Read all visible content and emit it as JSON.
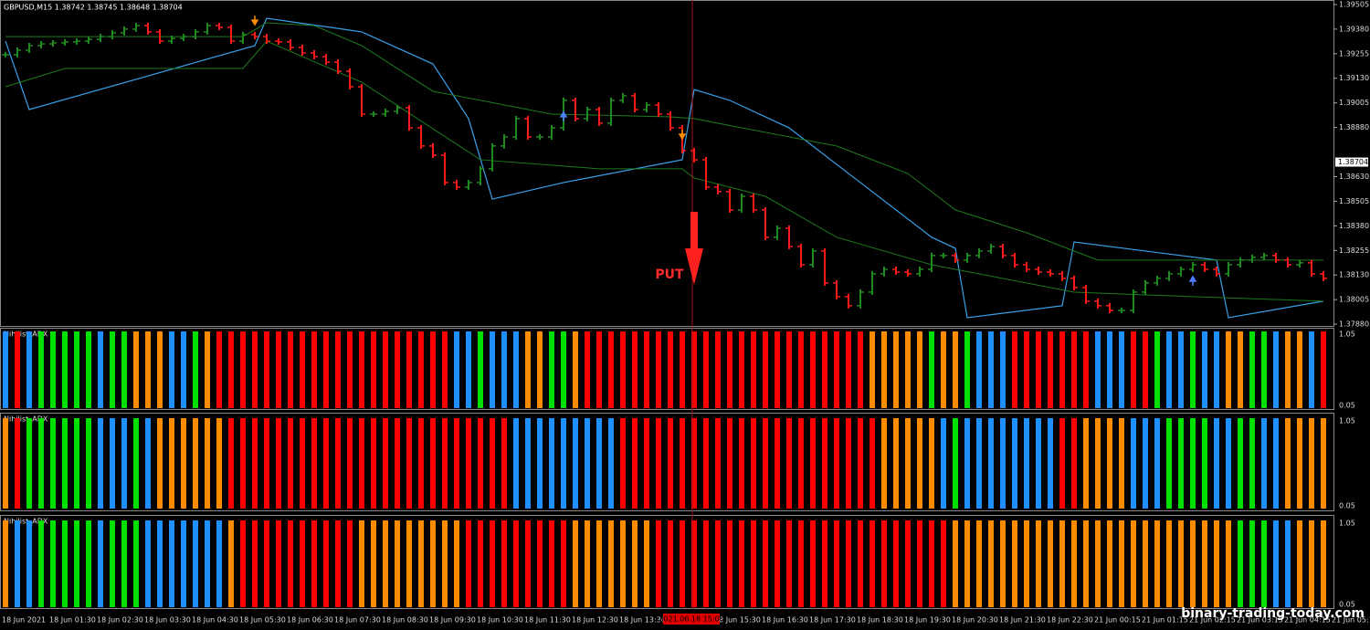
{
  "chart_data": {
    "type": "candlestick",
    "title": "GBPUSD,M15  1.38742 1.38745 1.38648 1.38704",
    "ylim": [
      1.37871,
      1.39528
    ],
    "yticks": [
      {
        "value": 1.39505,
        "label": "1.39505"
      },
      {
        "value": 1.3938,
        "label": "1.39380"
      },
      {
        "value": 1.39255,
        "label": "1.39255"
      },
      {
        "value": 1.3913,
        "label": "1.39130"
      },
      {
        "value": 1.39005,
        "label": "1.39005"
      },
      {
        "value": 1.3888,
        "label": "1.38880"
      },
      {
        "value": 1.3863,
        "label": "1.38630"
      },
      {
        "value": 1.38505,
        "label": "1.38505"
      },
      {
        "value": 1.3838,
        "label": "1.38380"
      },
      {
        "value": 1.38255,
        "label": "1.38255"
      },
      {
        "value": 1.3813,
        "label": "1.38130"
      },
      {
        "value": 1.38005,
        "label": "1.38005"
      },
      {
        "value": 1.3788,
        "label": "1.37880"
      }
    ],
    "last_price": 1.38704,
    "up_color": "#1f8a1f",
    "down_color": "#ff1a1a",
    "closes": [
      1.3925,
      1.39273,
      1.39296,
      1.39305,
      1.3931,
      1.39315,
      1.39319,
      1.39328,
      1.39342,
      1.39361,
      1.3938,
      1.39398,
      1.39366,
      1.39319,
      1.39333,
      1.39342,
      1.39366,
      1.39398,
      1.39389,
      1.39319,
      1.39352,
      1.39342,
      1.39319,
      1.39315,
      1.39287,
      1.39259,
      1.3924,
      1.39212,
      1.39166,
      1.39087,
      1.38948,
      1.38948,
      1.38962,
      1.3898,
      1.38878,
      1.38786,
      1.38739,
      1.386,
      1.38577,
      1.386,
      1.3867,
      1.38786,
      1.38832,
      1.38925,
      1.38832,
      1.38832,
      1.38878,
      1.39018,
      1.38925,
      1.38971,
      1.38902,
      1.39018,
      1.39041,
      1.38971,
      1.38994,
      1.38948,
      1.38878,
      1.38762,
      1.38716,
      1.38577,
      1.38554,
      1.38461,
      1.3853,
      1.38461,
      1.38322,
      1.38368,
      1.38275,
      1.38182,
      1.38252,
      1.3809,
      1.3802,
      1.37974,
      1.38043,
      1.38136,
      1.38159,
      1.38145,
      1.38136,
      1.38159,
      1.38229,
      1.38229,
      1.38206,
      1.38229,
      1.38252,
      1.38275,
      1.38229,
      1.38182,
      1.38159,
      1.38145,
      1.38136,
      1.38113,
      1.38066,
      1.37997,
      1.37974,
      1.3795,
      1.3795,
      1.38043,
      1.3809,
      1.38113,
      1.38136,
      1.38159,
      1.38182,
      1.38159,
      1.38136,
      1.38182,
      1.38206,
      1.3822,
      1.38229,
      1.38206,
      1.38182,
      1.38192,
      1.38136,
      1.38113
    ],
    "lines": [
      {
        "color": "#3aa0e8",
        "x": [
          0,
          2,
          21,
          22,
          30,
          36,
          39,
          41,
          47,
          57,
          58,
          61,
          66,
          72,
          78,
          80,
          81,
          89,
          90,
          102,
          103,
          111
        ],
        "values": [
          1.39319,
          1.38971,
          1.39296,
          1.39435,
          1.39366,
          1.39203,
          1.38925,
          1.38516,
          1.386,
          1.38716,
          1.39073,
          1.39018,
          1.38878,
          1.386,
          1.38322,
          1.38266,
          1.37913,
          1.37974,
          1.38298,
          1.38206,
          1.37913,
          1.37997
        ]
      },
      {
        "color": "#1e7a1e",
        "x": [
          0,
          20,
          22,
          26,
          30,
          36,
          40,
          46,
          56,
          58,
          62,
          70,
          76,
          80,
          86,
          92,
          100,
          111
        ],
        "values": [
          1.39342,
          1.39342,
          1.39412,
          1.39398,
          1.39296,
          1.39064,
          1.39018,
          1.38948,
          1.38934,
          1.38925,
          1.38878,
          1.38786,
          1.38646,
          1.38461,
          1.38345,
          1.38206,
          1.38206,
          1.38206
        ]
      },
      {
        "color": "#1e7a1e",
        "x": [
          0,
          5,
          20,
          22,
          30,
          40,
          50,
          57,
          58,
          64,
          70,
          78,
          90,
          100,
          111
        ],
        "values": [
          1.39087,
          1.3918,
          1.3918,
          1.39319,
          1.3911,
          1.38716,
          1.3867,
          1.3867,
          1.38623,
          1.3853,
          1.38322,
          1.38182,
          1.38043,
          1.3802,
          1.37997
        ]
      }
    ],
    "arrows": [
      {
        "candle": 21,
        "dir": "down",
        "color": "#ff8c00"
      },
      {
        "candle": 57,
        "dir": "down",
        "color": "#ff8c00"
      },
      {
        "candle": 47,
        "dir": "up",
        "color": "#4f7fff"
      },
      {
        "candle": 100,
        "dir": "up",
        "color": "#4f7fff"
      }
    ],
    "annotation": "PUT",
    "crosshair_time": "2021.06.18 15:00",
    "times": [
      "18 Jun 2021",
      "18 Jun 01:30",
      "18 Jun 02:30",
      "18 Jun 03:30",
      "18 Jun 04:30",
      "18 Jun 05:30",
      "18 Jun 06:30",
      "18 Jun 07:30",
      "18 Jun 08:30",
      "18 Jun 09:30",
      "18 Jun 10:30",
      "18 Jun 11:30",
      "18 Jun 12:30",
      "18 Jun 13:30",
      "18 Jun 15:30",
      "18 Jun 16:30",
      "18 Jun 17:30",
      "18 Jun 18:30",
      "18 Jun 19:30",
      "18 Jun 20:30",
      "18 Jun 21:30",
      "18 Jun 22:30",
      "21 Jun 00:15",
      "21 Jun 01:15",
      "21 Jun 02:15",
      "21 Jun 03:15",
      "21 Jun 04:15",
      "21 Jun 05:15"
    ],
    "palette": {
      "r": "#ff0000",
      "g": "#00e000",
      "b": "#1e90ff",
      "o": "#ff8c00"
    },
    "panels": [
      {
        "name": "Nihilist_ADX",
        "ylim": [
          0.05,
          1.05
        ],
        "colors": [
          "b",
          "r",
          "b",
          "g",
          "g",
          "g",
          "g",
          "g",
          "b",
          "g",
          "g",
          "o",
          "o",
          "o",
          "b",
          "b",
          "g",
          "o",
          "r",
          "r",
          "r",
          "r",
          "r",
          "r",
          "r",
          "r",
          "r",
          "r",
          "r",
          "r",
          "r",
          "r",
          "r",
          "r",
          "r",
          "r",
          "r",
          "r",
          "b",
          "b",
          "g",
          "b",
          "b",
          "b",
          "o",
          "o",
          "g",
          "g",
          "o",
          "r",
          "r",
          "r",
          "r",
          "r",
          "r",
          "r",
          "r",
          "r",
          "r",
          "r",
          "r",
          "r",
          "r",
          "r",
          "r",
          "r",
          "r",
          "r",
          "r",
          "r",
          "r",
          "r",
          "r",
          "o",
          "o",
          "o",
          "o",
          "o",
          "g",
          "o",
          "o",
          "g",
          "b",
          "b",
          "b",
          "r",
          "r",
          "r",
          "r",
          "r",
          "r",
          "r",
          "b",
          "b",
          "b",
          "r",
          "r",
          "g",
          "b",
          "b",
          "g",
          "b",
          "b",
          "o",
          "o",
          "g",
          "g",
          "b",
          "o",
          "o",
          "b",
          "r"
        ]
      },
      {
        "name": "Nihilist_ADX",
        "ylim": [
          0.05,
          1.05
        ],
        "colors": [
          "o",
          "r",
          "g",
          "g",
          "g",
          "g",
          "g",
          "g",
          "b",
          "b",
          "b",
          "g",
          "b",
          "o",
          "o",
          "o",
          "o",
          "o",
          "o",
          "r",
          "r",
          "r",
          "r",
          "r",
          "r",
          "r",
          "r",
          "r",
          "r",
          "r",
          "r",
          "r",
          "r",
          "r",
          "r",
          "r",
          "r",
          "r",
          "r",
          "r",
          "r",
          "r",
          "r",
          "b",
          "b",
          "b",
          "b",
          "b",
          "b",
          "b",
          "b",
          "b",
          "r",
          "r",
          "r",
          "r",
          "r",
          "r",
          "r",
          "r",
          "r",
          "r",
          "r",
          "r",
          "r",
          "r",
          "r",
          "r",
          "r",
          "r",
          "r",
          "r",
          "r",
          "r",
          "o",
          "o",
          "o",
          "o",
          "o",
          "b",
          "g",
          "b",
          "b",
          "b",
          "b",
          "b",
          "b",
          "b",
          "b",
          "r",
          "r",
          "o",
          "o",
          "o",
          "o",
          "b",
          "b",
          "b",
          "g",
          "g",
          "g",
          "g",
          "b",
          "b",
          "g",
          "g",
          "b",
          "b",
          "o",
          "o",
          "o",
          "o"
        ]
      },
      {
        "name": "Nihilist_ADX",
        "ylim": [
          0.05,
          1.05
        ],
        "colors": [
          "o",
          "b",
          "b",
          "g",
          "g",
          "g",
          "g",
          "g",
          "b",
          "g",
          "g",
          "g",
          "b",
          "b",
          "b",
          "b",
          "b",
          "b",
          "b",
          "o",
          "r",
          "r",
          "r",
          "r",
          "r",
          "r",
          "r",
          "r",
          "r",
          "r",
          "o",
          "o",
          "o",
          "o",
          "o",
          "o",
          "o",
          "o",
          "o",
          "r",
          "r",
          "r",
          "r",
          "r",
          "r",
          "r",
          "r",
          "r",
          "o",
          "o",
          "o",
          "o",
          "o",
          "o",
          "o",
          "r",
          "r",
          "r",
          "r",
          "r",
          "r",
          "r",
          "r",
          "r",
          "r",
          "r",
          "r",
          "r",
          "r",
          "r",
          "r",
          "r",
          "r",
          "r",
          "r",
          "r",
          "r",
          "r",
          "r",
          "r",
          "o",
          "o",
          "o",
          "o",
          "o",
          "o",
          "o",
          "o",
          "o",
          "o",
          "o",
          "o",
          "o",
          "o",
          "o",
          "o",
          "o",
          "o",
          "o",
          "o",
          "o",
          "o",
          "o",
          "o",
          "g",
          "g",
          "g",
          "b",
          "b",
          "o",
          "o",
          "o"
        ]
      }
    ],
    "watermark": "binary-trading-today.com"
  }
}
